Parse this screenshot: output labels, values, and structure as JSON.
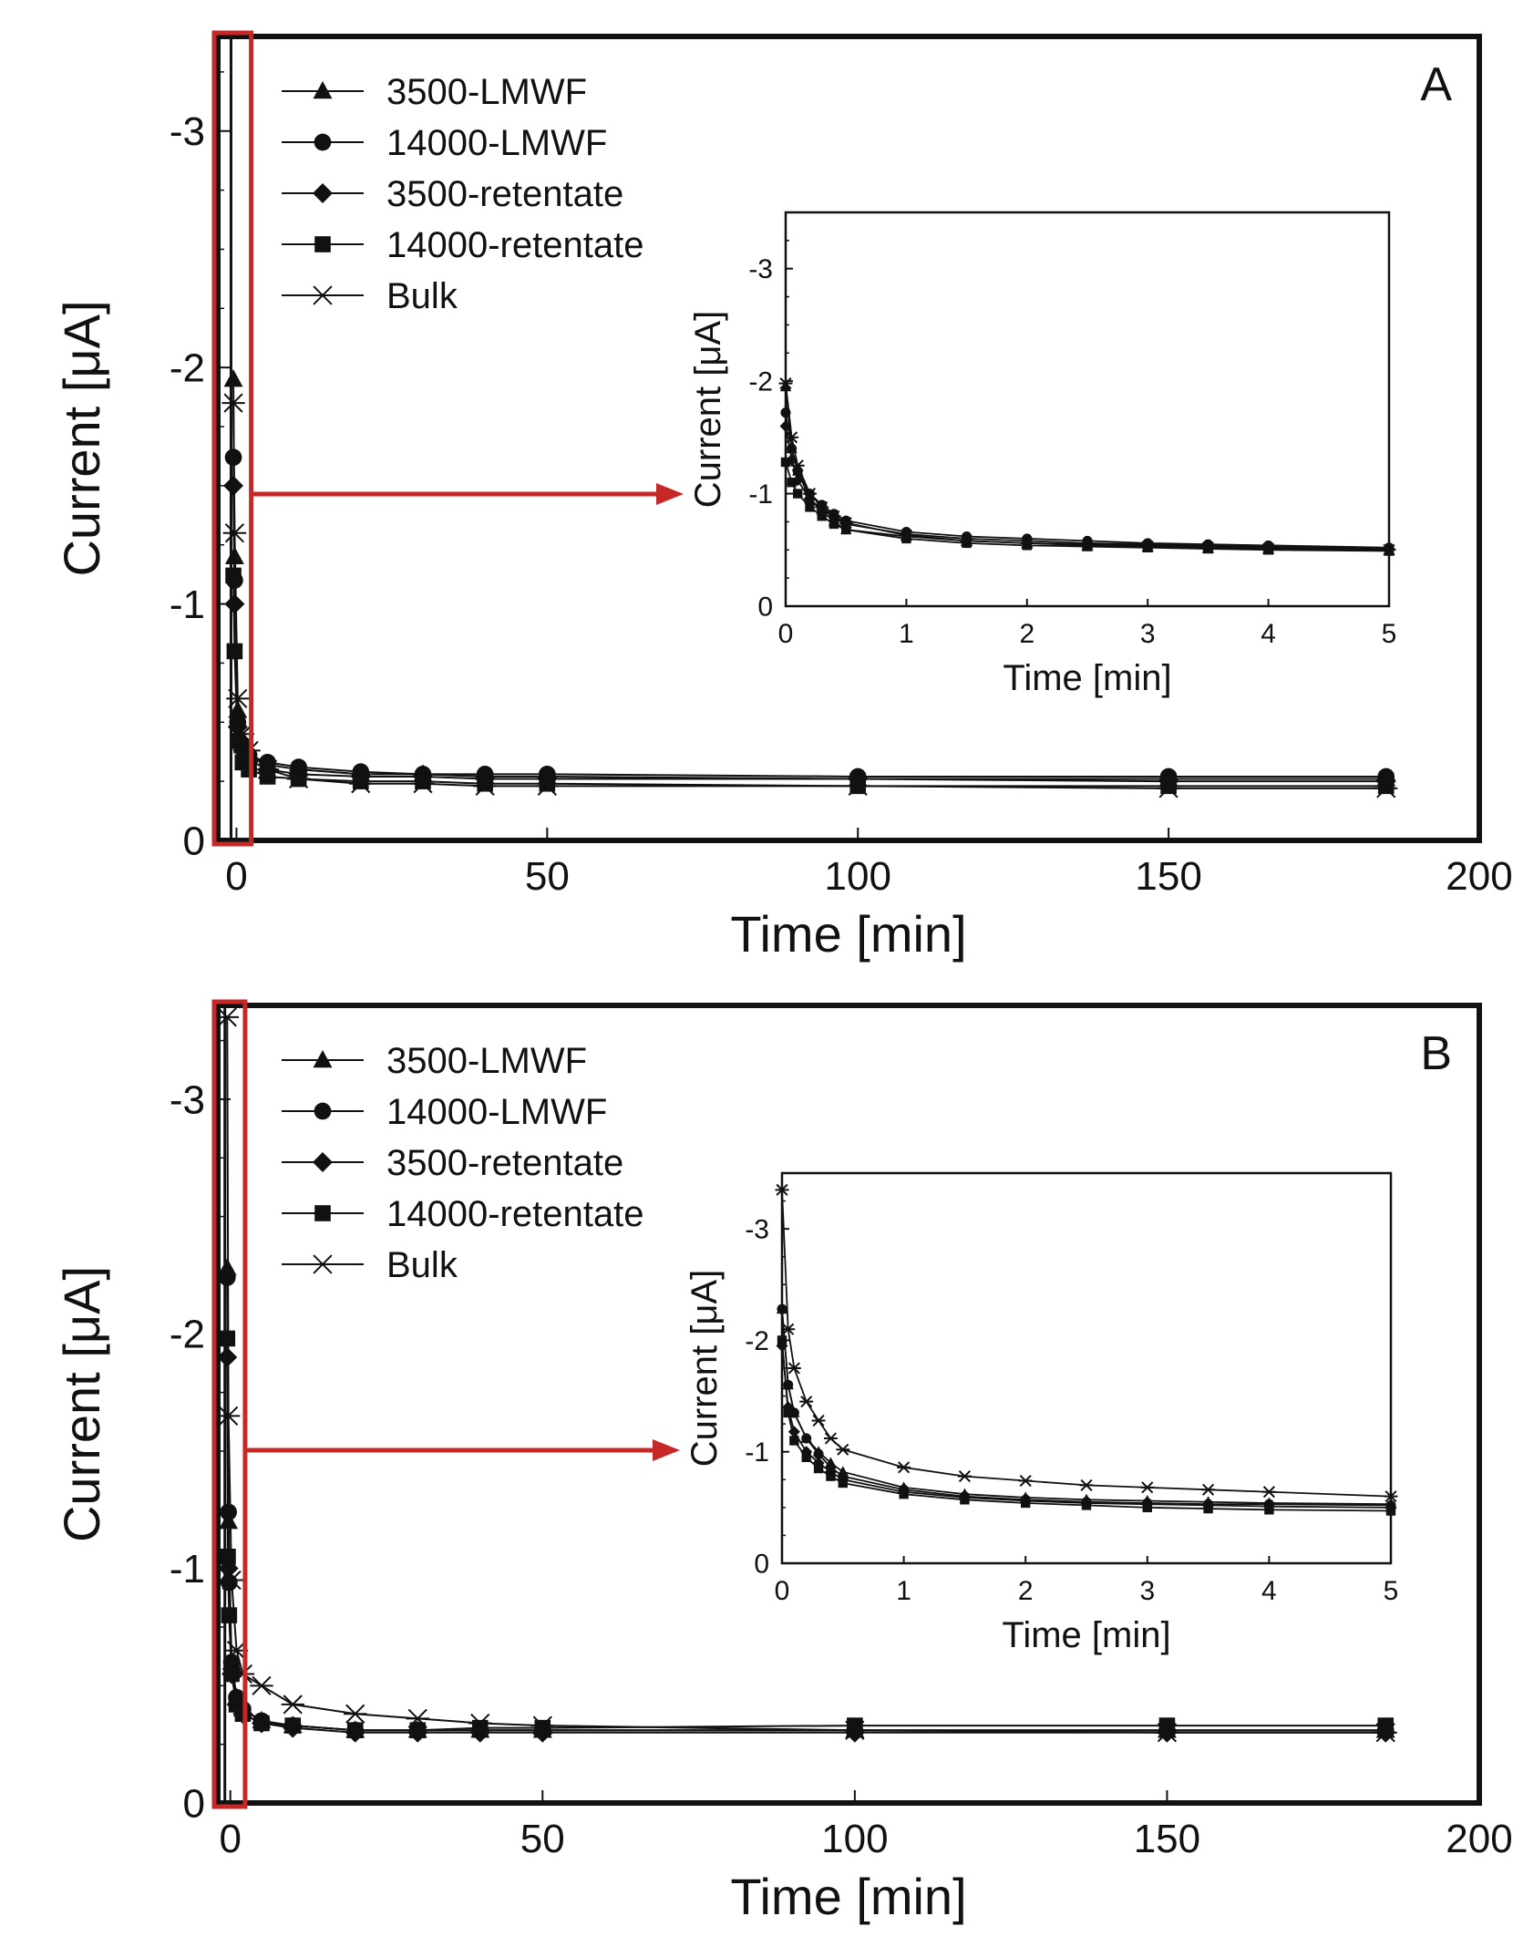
{
  "chart_data": [
    {
      "type": "line",
      "panel_label": "A",
      "xlabel": "Time [min]",
      "ylabel": "Current [μA]",
      "xlim": [
        -3,
        200
      ],
      "ylim": [
        0,
        -3.4
      ],
      "x_ticks": [
        0,
        50,
        100,
        150,
        200
      ],
      "y_ticks": [
        0,
        -1,
        -2,
        -3
      ],
      "x_tick_labels": [
        "0",
        "50",
        "100",
        "150",
        "200"
      ],
      "y_tick_labels": [
        "0",
        "-1",
        "-2",
        "-3"
      ],
      "legend_position": "top-left",
      "series": [
        {
          "name": "3500-LMWF",
          "marker": "triangle",
          "x": [
            -0.5,
            -0.3,
            0.2,
            1,
            2,
            5,
            10,
            20,
            30,
            40,
            50,
            100,
            150,
            185
          ],
          "y": [
            -1.95,
            -1.2,
            -0.55,
            -0.4,
            -0.36,
            -0.32,
            -0.3,
            -0.28,
            -0.28,
            -0.27,
            -0.27,
            -0.26,
            -0.26,
            -0.26
          ]
        },
        {
          "name": "14000-LMWF",
          "marker": "circle",
          "x": [
            -0.5,
            -0.3,
            0.2,
            1,
            2,
            5,
            10,
            20,
            30,
            40,
            50,
            100,
            150,
            185
          ],
          "y": [
            -1.62,
            -1.1,
            -0.5,
            -0.4,
            -0.36,
            -0.33,
            -0.31,
            -0.29,
            -0.28,
            -0.28,
            -0.28,
            -0.27,
            -0.27,
            -0.27
          ]
        },
        {
          "name": "3500-retentate",
          "marker": "diamond",
          "x": [
            -0.5,
            -0.3,
            0.2,
            1,
            2,
            5,
            10,
            20,
            30,
            40,
            50,
            100,
            150,
            185
          ],
          "y": [
            -1.5,
            -1.0,
            -0.48,
            -0.38,
            -0.34,
            -0.3,
            -0.28,
            -0.27,
            -0.27,
            -0.26,
            -0.26,
            -0.26,
            -0.25,
            -0.25
          ]
        },
        {
          "name": "14000-retentate",
          "marker": "square",
          "x": [
            -0.5,
            -0.3,
            0.2,
            1,
            2,
            5,
            10,
            20,
            30,
            40,
            50,
            100,
            150,
            185
          ],
          "y": [
            -1.12,
            -0.8,
            -0.42,
            -0.33,
            -0.3,
            -0.27,
            -0.26,
            -0.25,
            -0.25,
            -0.24,
            -0.24,
            -0.23,
            -0.23,
            -0.23
          ]
        },
        {
          "name": "Bulk",
          "marker": "star",
          "x": [
            -0.5,
            -0.3,
            0.2,
            1,
            2,
            5,
            10,
            20,
            30,
            40,
            50,
            100,
            150,
            185
          ],
          "y": [
            -1.85,
            -1.3,
            -0.6,
            -0.45,
            -0.38,
            -0.3,
            -0.26,
            -0.24,
            -0.24,
            -0.23,
            -0.23,
            -0.23,
            -0.22,
            -0.22
          ]
        }
      ],
      "inset": {
        "type": "line",
        "xlabel": "Time [min]",
        "ylabel": "Current [μA]",
        "xlim": [
          0,
          5
        ],
        "ylim": [
          0,
          -3.5
        ],
        "x_ticks": [
          0,
          1,
          2,
          3,
          4,
          5
        ],
        "y_ticks": [
          0,
          -1,
          -2,
          -3
        ],
        "x_tick_labels": [
          "0",
          "1",
          "2",
          "3",
          "4",
          "5"
        ],
        "y_tick_labels": [
          "0",
          "-1",
          "-2",
          "-3"
        ],
        "series": [
          {
            "name": "3500-LMWF",
            "marker": "triangle",
            "x": [
              0,
              0.05,
              0.1,
              0.2,
              0.3,
              0.4,
              0.5,
              1,
              1.5,
              2,
              2.5,
              3,
              3.5,
              4,
              5
            ],
            "y": [
              -1.95,
              -1.4,
              -1.2,
              -0.95,
              -0.85,
              -0.75,
              -0.68,
              -0.62,
              -0.58,
              -0.56,
              -0.55,
              -0.54,
              -0.53,
              -0.52,
              -0.5
            ]
          },
          {
            "name": "14000-LMWF",
            "marker": "circle",
            "x": [
              0,
              0.05,
              0.1,
              0.2,
              0.3,
              0.4,
              0.5,
              1,
              1.5,
              2,
              2.5,
              3,
              3.5,
              4,
              5
            ],
            "y": [
              -1.72,
              -1.4,
              -1.2,
              -1.0,
              -0.9,
              -0.82,
              -0.76,
              -0.66,
              -0.62,
              -0.6,
              -0.58,
              -0.56,
              -0.55,
              -0.54,
              -0.52
            ]
          },
          {
            "name": "3500-retentate",
            "marker": "diamond",
            "x": [
              0,
              0.05,
              0.1,
              0.2,
              0.3,
              0.4,
              0.5,
              1,
              1.5,
              2,
              2.5,
              3,
              3.5,
              4,
              5
            ],
            "y": [
              -1.6,
              -1.3,
              -1.12,
              -0.95,
              -0.86,
              -0.79,
              -0.73,
              -0.64,
              -0.6,
              -0.58,
              -0.56,
              -0.55,
              -0.54,
              -0.53,
              -0.51
            ]
          },
          {
            "name": "14000-retentate",
            "marker": "square",
            "x": [
              0,
              0.05,
              0.1,
              0.2,
              0.3,
              0.4,
              0.5,
              1,
              1.5,
              2,
              2.5,
              3,
              3.5,
              4,
              5
            ],
            "y": [
              -1.28,
              -1.1,
              -1.0,
              -0.88,
              -0.8,
              -0.73,
              -0.68,
              -0.6,
              -0.56,
              -0.54,
              -0.53,
              -0.52,
              -0.51,
              -0.5,
              -0.49
            ]
          },
          {
            "name": "Bulk",
            "marker": "star",
            "x": [
              0,
              0.05,
              0.1,
              0.2,
              0.3,
              0.4,
              0.5,
              1,
              1.5,
              2,
              2.5,
              3,
              3.5,
              4,
              5
            ],
            "y": [
              -1.98,
              -1.5,
              -1.25,
              -1.0,
              -0.88,
              -0.8,
              -0.74,
              -0.63,
              -0.58,
              -0.56,
              -0.54,
              -0.53,
              -0.52,
              -0.51,
              -0.5
            ]
          }
        ]
      }
    },
    {
      "type": "line",
      "panel_label": "B",
      "xlabel": "Time [min]",
      "ylabel": "Current [μA]",
      "xlim": [
        -2,
        200
      ],
      "ylim": [
        0,
        -3.4
      ],
      "x_ticks": [
        0,
        50,
        100,
        150,
        200
      ],
      "y_ticks": [
        0,
        -1,
        -2,
        -3
      ],
      "x_tick_labels": [
        "0",
        "50",
        "100",
        "150",
        "200"
      ],
      "y_tick_labels": [
        "0",
        "-1",
        "-2",
        "-3"
      ],
      "legend_position": "top-left",
      "series": [
        {
          "name": "3500-LMWF",
          "marker": "triangle",
          "x": [
            -0.5,
            -0.3,
            0.2,
            1,
            2,
            5,
            10,
            20,
            30,
            40,
            50,
            100,
            150,
            185
          ],
          "y": [
            -2.28,
            -1.2,
            -0.6,
            -0.45,
            -0.4,
            -0.35,
            -0.33,
            -0.31,
            -0.31,
            -0.31,
            -0.31,
            -0.31,
            -0.31,
            -0.31
          ]
        },
        {
          "name": "14000-LMWF",
          "marker": "circle",
          "x": [
            -0.5,
            -0.3,
            -0.2,
            0.2,
            1,
            2,
            5,
            10,
            20,
            30,
            40,
            50,
            100,
            150,
            185
          ],
          "y": [
            -2.24,
            -1.24,
            -0.94,
            -0.6,
            -0.45,
            -0.4,
            -0.35,
            -0.33,
            -0.31,
            -0.31,
            -0.31,
            -0.31,
            -0.31,
            -0.31,
            -0.31
          ]
        },
        {
          "name": "3500-retentate",
          "marker": "diamond",
          "x": [
            -0.5,
            -0.3,
            0.2,
            1,
            2,
            5,
            10,
            20,
            30,
            40,
            50,
            100,
            150,
            185
          ],
          "y": [
            -1.9,
            -1.0,
            -0.55,
            -0.42,
            -0.38,
            -0.34,
            -0.32,
            -0.3,
            -0.3,
            -0.3,
            -0.3,
            -0.3,
            -0.3,
            -0.3
          ]
        },
        {
          "name": "14000-retentate",
          "marker": "square",
          "x": [
            -0.5,
            -0.4,
            -0.2,
            0.2,
            1,
            2,
            5,
            10,
            20,
            30,
            40,
            50,
            100,
            150,
            185
          ],
          "y": [
            -1.98,
            -1.05,
            -0.8,
            -0.55,
            -0.42,
            -0.38,
            -0.34,
            -0.33,
            -0.31,
            -0.31,
            -0.32,
            -0.32,
            -0.33,
            -0.33,
            -0.33
          ]
        },
        {
          "name": "Bulk",
          "marker": "star",
          "x": [
            -0.5,
            -0.3,
            0.2,
            1,
            2,
            5,
            10,
            20,
            30,
            40,
            50,
            100,
            150,
            185
          ],
          "y": [
            -3.35,
            -1.65,
            -0.95,
            -0.65,
            -0.55,
            -0.5,
            -0.42,
            -0.38,
            -0.36,
            -0.34,
            -0.33,
            -0.31,
            -0.3,
            -0.3
          ]
        }
      ],
      "inset": {
        "type": "line",
        "xlabel": "Time [min]",
        "ylabel": "Current [μA]",
        "xlim": [
          0,
          5
        ],
        "ylim": [
          0,
          -3.5
        ],
        "x_ticks": [
          0,
          1,
          2,
          3,
          4,
          5
        ],
        "y_ticks": [
          0,
          -1,
          -2,
          -3
        ],
        "x_tick_labels": [
          "0",
          "1",
          "2",
          "3",
          "4",
          "5"
        ],
        "y_tick_labels": [
          "0",
          "-1",
          "-2",
          "-3"
        ],
        "series": [
          {
            "name": "3500-LMWF",
            "marker": "triangle",
            "x": [
              0,
              0.05,
              0.1,
              0.2,
              0.3,
              0.4,
              0.5,
              1,
              1.5,
              2,
              2.5,
              3,
              3.5,
              4,
              5
            ],
            "y": [
              -2.28,
              -1.6,
              -1.35,
              -1.12,
              -1.0,
              -0.9,
              -0.82,
              -0.68,
              -0.62,
              -0.59,
              -0.57,
              -0.56,
              -0.55,
              -0.54,
              -0.53
            ]
          },
          {
            "name": "14000-LMWF",
            "marker": "circle",
            "x": [
              0,
              0.05,
              0.1,
              0.2,
              0.3,
              0.4,
              0.5,
              1,
              1.5,
              2,
              2.5,
              3,
              3.5,
              4,
              5
            ],
            "y": [
              -2.28,
              -1.6,
              -1.35,
              -1.12,
              -0.98,
              -0.86,
              -0.78,
              -0.66,
              -0.6,
              -0.57,
              -0.55,
              -0.54,
              -0.53,
              -0.53,
              -0.52
            ]
          },
          {
            "name": "3500-retentate",
            "marker": "diamond",
            "x": [
              0,
              0.05,
              0.1,
              0.2,
              0.3,
              0.4,
              0.5,
              1,
              1.5,
              2,
              2.5,
              3,
              3.5,
              4,
              5
            ],
            "y": [
              -1.95,
              -1.4,
              -1.18,
              -1.0,
              -0.9,
              -0.82,
              -0.75,
              -0.64,
              -0.59,
              -0.56,
              -0.54,
              -0.53,
              -0.52,
              -0.51,
              -0.5
            ]
          },
          {
            "name": "14000-retentate",
            "marker": "square",
            "x": [
              0,
              0.05,
              0.1,
              0.2,
              0.3,
              0.4,
              0.5,
              1,
              1.5,
              2,
              2.5,
              3,
              3.5,
              4,
              5
            ],
            "y": [
              -2.0,
              -1.35,
              -1.1,
              -0.95,
              -0.85,
              -0.78,
              -0.72,
              -0.62,
              -0.57,
              -0.54,
              -0.52,
              -0.5,
              -0.49,
              -0.48,
              -0.47
            ]
          },
          {
            "name": "Bulk",
            "marker": "star",
            "x": [
              0,
              0.05,
              0.1,
              0.2,
              0.3,
              0.4,
              0.5,
              1,
              1.5,
              2,
              2.5,
              3,
              3.5,
              4,
              5
            ],
            "y": [
              -3.35,
              -2.1,
              -1.75,
              -1.45,
              -1.28,
              -1.12,
              -1.02,
              -0.86,
              -0.78,
              -0.74,
              -0.7,
              -0.68,
              -0.66,
              -0.64,
              -0.6
            ]
          }
        ]
      }
    }
  ],
  "style": {
    "highlight_color": "#c62828",
    "line_color": "#111111"
  }
}
